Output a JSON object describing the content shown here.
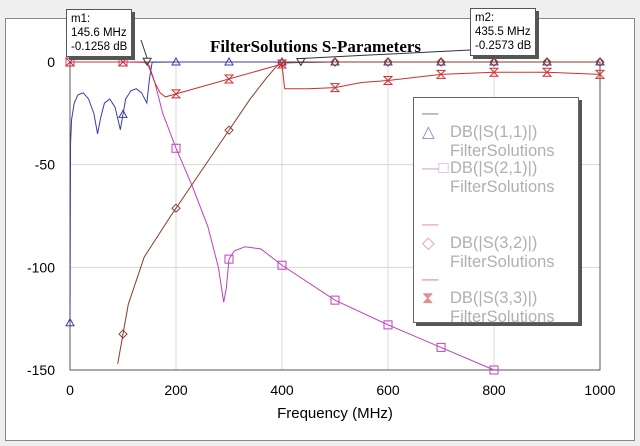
{
  "chart_data": {
    "type": "line",
    "title": "FilterSolutions S-Parameters",
    "xlabel": "Frequency (MHz)",
    "ylabel": "",
    "xlim": [
      0,
      1000
    ],
    "ylim": [
      -150,
      0
    ],
    "xticks": [
      "0",
      "200",
      "400",
      "600",
      "800",
      "1000"
    ],
    "yticks": [
      "0",
      "-50",
      "-100",
      "-150"
    ],
    "grid": true,
    "legend_position": "right",
    "series": [
      {
        "name": "DB(|S(1,1)|)",
        "subtitle": "FilterSolutions",
        "color": "#3b3ba8",
        "marker": "triangle",
        "x": [
          0,
          1,
          3,
          8,
          15,
          25,
          35,
          45,
          52,
          58,
          65,
          75,
          85,
          95,
          105,
          115,
          125,
          135,
          145,
          150,
          155,
          200,
          300,
          400,
          500,
          600,
          700,
          800,
          900,
          1000
        ],
        "y": [
          -127,
          -40,
          -28,
          -20,
          -16,
          -15,
          -18,
          -25,
          -35,
          -27,
          -20,
          -18,
          -22,
          -33,
          -18,
          -14,
          -13,
          -15,
          -20,
          -8,
          -0.1,
          0,
          0,
          0,
          0,
          0,
          0,
          0,
          0,
          0
        ]
      },
      {
        "name": "DB(|S(2,1)|)",
        "subtitle": "FilterSolutions",
        "color": "#c040c0",
        "marker": "square",
        "x": [
          0,
          100,
          140,
          150,
          160,
          175,
          200,
          230,
          260,
          280,
          290,
          295,
          300,
          310,
          330,
          360,
          400,
          500,
          600,
          700,
          800
        ],
        "y": [
          0,
          0,
          -0.1,
          -2,
          -10,
          -25,
          -42,
          -60,
          -80,
          -100,
          -117,
          -110,
          -96,
          -92,
          -90,
          -91,
          -99,
          -116,
          -128,
          -139,
          -150
        ]
      },
      {
        "name": "DB(|S(3,2)|)",
        "subtitle": "FilterSolutions",
        "color": "#8b3a2a",
        "marker": "diamond",
        "x": [
          90,
          110,
          140,
          190,
          240,
          290,
          340,
          370,
          390,
          400,
          435,
          500,
          600,
          700,
          800,
          900,
          1000
        ],
        "y": [
          -147,
          -118,
          -95,
          -75,
          -56,
          -37,
          -18,
          -8,
          -2,
          -0.5,
          -0.26,
          0,
          0,
          0,
          0,
          0,
          0
        ]
      },
      {
        "name": "DB(|S(3,3)|)",
        "subtitle": "FilterSolutions",
        "color": "#cc3030",
        "marker": "hourglass",
        "x": [
          0,
          100,
          145.6,
          160,
          170,
          180,
          400,
          405,
          450,
          500,
          550,
          600,
          700,
          800,
          900,
          1000
        ],
        "y": [
          0,
          0,
          -0.13,
          -10,
          -15,
          -17,
          -1,
          -13,
          -13,
          -12.5,
          -10,
          -9,
          -6,
          -5,
          -5,
          -6
        ]
      }
    ],
    "markers": [
      {
        "label": "m1:",
        "freq": "145.6 MHz",
        "value": "-0.1258 dB",
        "x": 145.6,
        "y": -0.1258
      },
      {
        "label": "m2:",
        "freq": "435.5 MHz",
        "value": "-0.2573 dB",
        "x": 435.5,
        "y": -0.2573
      }
    ]
  }
}
